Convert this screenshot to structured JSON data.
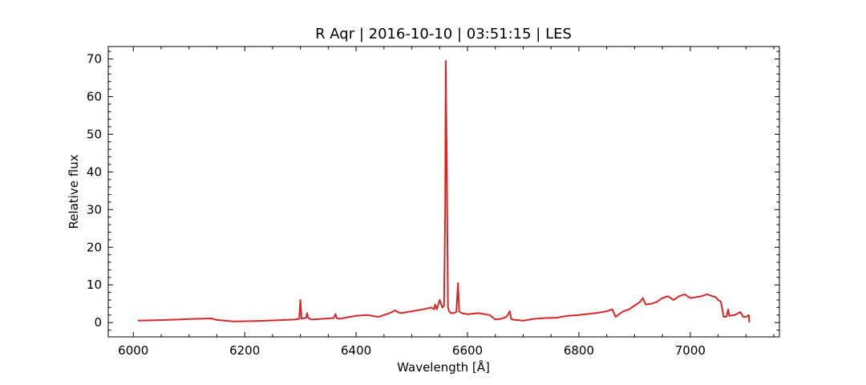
{
  "chart_data": {
    "type": "line",
    "title": "R Aqr | 2016-10-10 | 03:51:15 | LES",
    "xlabel": "Wavelength [Å]",
    "ylabel": "Relative flux",
    "xlim": [
      5955,
      7160
    ],
    "ylim": [
      -3.8,
      73.3
    ],
    "xticks": [
      6000,
      6200,
      6400,
      6600,
      6800,
      7000
    ],
    "yticks": [
      0,
      10,
      20,
      30,
      40,
      50,
      60,
      70
    ],
    "xtick_labels": [
      "6000",
      "6200",
      "6400",
      "6600",
      "6800",
      "7000"
    ],
    "ytick_labels": [
      "0",
      "10",
      "20",
      "30",
      "40",
      "50",
      "60",
      "70"
    ],
    "grid": false,
    "color": "#d62728",
    "series": [
      {
        "x": [
          6008,
          6040,
          6080,
          6110,
          6140,
          6150,
          6180,
          6220,
          6260,
          6290,
          6298,
          6300,
          6302,
          6304,
          6310,
          6312,
          6314,
          6320,
          6340,
          6360,
          6363,
          6365,
          6370,
          6400,
          6420,
          6440,
          6460,
          6470,
          6475,
          6480,
          6500,
          6520,
          6535,
          6540,
          6542,
          6545,
          6550,
          6555,
          6558,
          6560,
          6561,
          6563,
          6565,
          6567,
          6570,
          6575,
          6580,
          6583,
          6585,
          6590,
          6600,
          6620,
          6640,
          6650,
          6660,
          6670,
          6676,
          6678,
          6680,
          6700,
          6720,
          6740,
          6760,
          6780,
          6800,
          6830,
          6850,
          6860,
          6866,
          6870,
          6880,
          6890,
          6900,
          6910,
          6915,
          6920,
          6930,
          6940,
          6950,
          6960,
          6970,
          6980,
          6990,
          7000,
          7020,
          7030,
          7040,
          7045,
          7050,
          7055,
          7060,
          7065,
          7068,
          7070,
          7080,
          7090,
          7095,
          7100,
          7105,
          7106
        ],
        "y": [
          0.5,
          0.6,
          0.8,
          1.0,
          1.1,
          0.7,
          0.3,
          0.4,
          0.6,
          0.8,
          1.0,
          6.0,
          1.0,
          1.1,
          1.2,
          2.5,
          1.2,
          0.8,
          1.0,
          1.2,
          2.3,
          1.2,
          1.0,
          1.8,
          2.0,
          1.5,
          2.5,
          3.2,
          2.8,
          2.5,
          3.0,
          3.5,
          4.0,
          3.5,
          4.8,
          3.5,
          6.0,
          4.0,
          4.5,
          30.0,
          69.5,
          40.0,
          4.0,
          3.0,
          2.5,
          2.5,
          2.8,
          10.5,
          3.0,
          2.5,
          2.2,
          2.5,
          2.0,
          0.8,
          1.0,
          1.5,
          3.0,
          1.2,
          0.8,
          0.5,
          1.0,
          1.2,
          1.3,
          1.8,
          2.0,
          2.5,
          3.0,
          3.5,
          1.5,
          2.0,
          3.0,
          3.5,
          4.5,
          5.5,
          6.5,
          4.8,
          5.0,
          5.5,
          6.5,
          7.0,
          6.0,
          7.0,
          7.5,
          6.5,
          7.0,
          7.5,
          7.0,
          6.8,
          6.0,
          5.5,
          1.5,
          1.6,
          3.5,
          1.8,
          2.0,
          2.8,
          1.5,
          1.5,
          2.0,
          0.0
        ]
      }
    ]
  }
}
